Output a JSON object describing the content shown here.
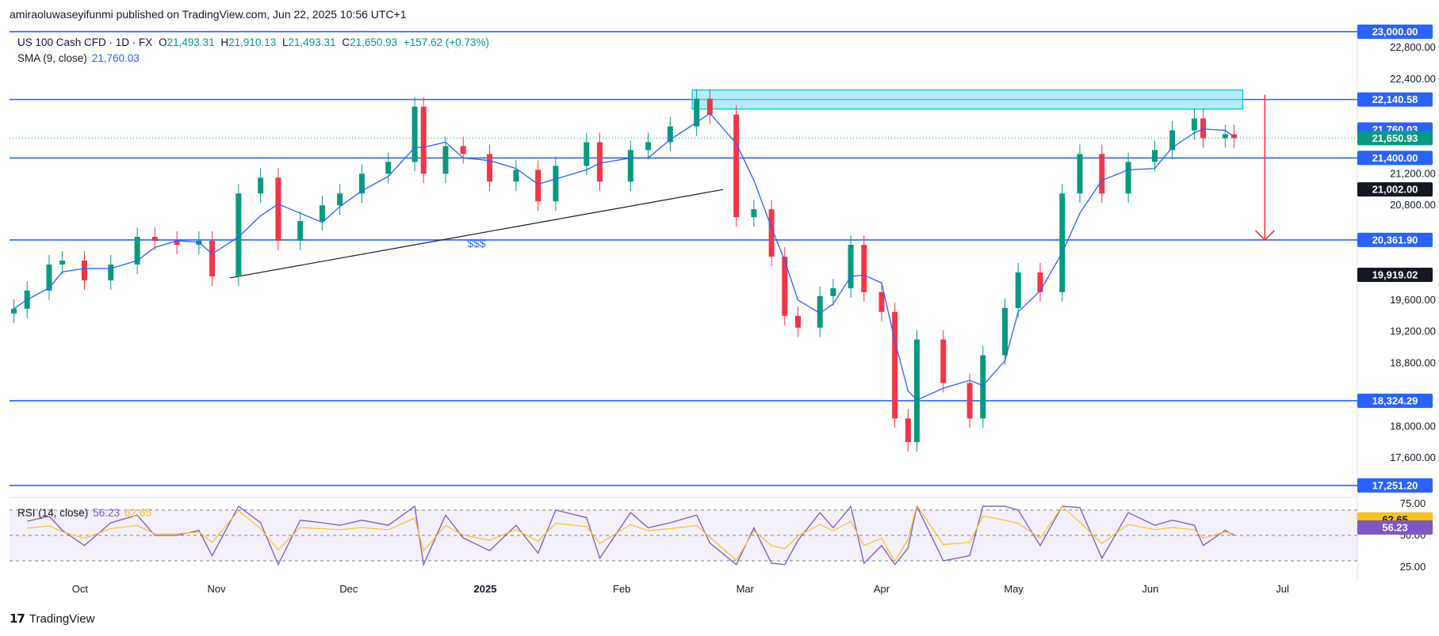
{
  "attribution": "amiraoluwaseyifunmi published on TradingView.com, Jun 22, 2025 10:56 UTC+1",
  "legend": {
    "symbol": "US 100 Cash CFD · 1D · FX",
    "open_label": "O",
    "open": "21,493.31",
    "high_label": "H",
    "high": "21,910.13",
    "low_label": "L",
    "low": "21,493.31",
    "close_label": "C",
    "close": "21,650.93",
    "change": "+157.62 (+0.73%)",
    "sma_label": "SMA (9, close)",
    "sma_value": "21,760.03"
  },
  "rsi_legend": {
    "label": "RSI (14, close)",
    "value": "56.23",
    "ma_value": "62.65"
  },
  "footer_logo": "TradingView",
  "colors": {
    "up": "#089981",
    "down": "#f23645",
    "level": "#2962ff",
    "sma": "#2962ff",
    "rsi": "#7e57c2",
    "rsi_ma": "#f7c21a",
    "zone": "#7fe1f0",
    "arrow": "#f23645"
  },
  "price_axis": {
    "ticks": [
      "22,800.00",
      "22,400.00",
      "21,200.00",
      "20,800.00",
      "19,600.00",
      "19,200.00",
      "18,800.00",
      "18,000.00",
      "17,600.00"
    ]
  },
  "price_badges": [
    {
      "text": "23,000.00",
      "style": "level"
    },
    {
      "text": "22,140.58",
      "style": "level"
    },
    {
      "text": "21,760.03",
      "style": "sma"
    },
    {
      "text": "21,650.93",
      "style": "last"
    },
    {
      "text": "21,400.00",
      "style": "level"
    },
    {
      "text": "21,002.00",
      "style": "dark"
    },
    {
      "text": "20,361.90",
      "style": "level"
    },
    {
      "text": "19,919.02",
      "style": "dark"
    },
    {
      "text": "18,324.29",
      "style": "level"
    },
    {
      "text": "17,251.20",
      "style": "level"
    }
  ],
  "rsi_axis": {
    "ticks": [
      "75.00",
      "50.00",
      "25.00"
    ],
    "badges": [
      "62.65",
      "56.23"
    ]
  },
  "time_axis": [
    "Oct",
    "Nov",
    "Dec",
    "2025",
    "Feb",
    "Mar",
    "Apr",
    "May",
    "Jun",
    "Jul"
  ],
  "annotation": "$$$",
  "chart_data": {
    "type": "candlestick",
    "title": "US 100 Cash CFD · 1D · FX",
    "x_range": [
      "2024-09-15",
      "2025-07-18"
    ],
    "y_range": [
      17100,
      23100
    ],
    "horizontal_levels": [
      23000,
      22140.58,
      21400,
      20361.9,
      18324.29,
      17251.2
    ],
    "supply_zone": {
      "from": "2025-02-17",
      "to": "2025-06-22",
      "price_low": 22020,
      "price_high": 22260
    },
    "trendline": {
      "from": [
        "2024-11-04",
        19880
      ],
      "to": [
        "2025-02-24",
        21000
      ]
    },
    "projection_arrow": {
      "date": "2025-06-27",
      "from": 22200,
      "to": 20361.9
    },
    "ohlc_daily_close": [
      [
        "2024-09-16",
        19490
      ],
      [
        "2024-09-19",
        19720
      ],
      [
        "2024-09-24",
        20050
      ],
      [
        "2024-09-27",
        20100
      ],
      [
        "2024-10-02",
        19850
      ],
      [
        "2024-10-08",
        20050
      ],
      [
        "2024-10-14",
        20400
      ],
      [
        "2024-10-18",
        20350
      ],
      [
        "2024-10-23",
        20300
      ],
      [
        "2024-10-28",
        20350
      ],
      [
        "2024-10-31",
        19900
      ],
      [
        "2024-11-06",
        20950
      ],
      [
        "2024-11-11",
        21150
      ],
      [
        "2024-11-15",
        20350
      ],
      [
        "2024-11-20",
        20600
      ],
      [
        "2024-11-25",
        20800
      ],
      [
        "2024-11-29",
        20950
      ],
      [
        "2024-12-04",
        21200
      ],
      [
        "2024-12-10",
        21350
      ],
      [
        "2024-12-16",
        22050
      ],
      [
        "2024-12-18",
        21200
      ],
      [
        "2024-12-23",
        21550
      ],
      [
        "2024-12-27",
        21450
      ],
      [
        "2025-01-02",
        21100
      ],
      [
        "2025-01-08",
        21250
      ],
      [
        "2025-01-13",
        20850
      ],
      [
        "2025-01-17",
        21300
      ],
      [
        "2025-01-24",
        21600
      ],
      [
        "2025-01-27",
        21100
      ],
      [
        "2025-02-03",
        21500
      ],
      [
        "2025-02-07",
        21600
      ],
      [
        "2025-02-12",
        21800
      ],
      [
        "2025-02-18",
        22150
      ],
      [
        "2025-02-21",
        21950
      ],
      [
        "2025-02-27",
        20650
      ],
      [
        "2025-03-03",
        20750
      ],
      [
        "2025-03-07",
        20150
      ],
      [
        "2025-03-10",
        19400
      ],
      [
        "2025-03-13",
        19250
      ],
      [
        "2025-03-18",
        19650
      ],
      [
        "2025-03-21",
        19750
      ],
      [
        "2025-03-25",
        20300
      ],
      [
        "2025-03-28",
        19700
      ],
      [
        "2025-04-01",
        19450
      ],
      [
        "2025-04-04",
        18100
      ],
      [
        "2025-04-07",
        17800
      ],
      [
        "2025-04-09",
        19100
      ],
      [
        "2025-04-15",
        18550
      ],
      [
        "2025-04-21",
        18100
      ],
      [
        "2025-04-24",
        18900
      ],
      [
        "2025-04-29",
        19500
      ],
      [
        "2025-05-02",
        19950
      ],
      [
        "2025-05-07",
        19700
      ],
      [
        "2025-05-12",
        20950
      ],
      [
        "2025-05-16",
        21450
      ],
      [
        "2025-05-21",
        20950
      ],
      [
        "2025-05-27",
        21350
      ],
      [
        "2025-06-02",
        21500
      ],
      [
        "2025-06-06",
        21750
      ],
      [
        "2025-06-11",
        21900
      ],
      [
        "2025-06-13",
        21650
      ],
      [
        "2025-06-18",
        21700
      ],
      [
        "2025-06-20",
        21650
      ]
    ],
    "sma_9_last": 21760.03,
    "rsi": {
      "period": 14,
      "last": 56.23,
      "ma_last": 62.65,
      "range": [
        25,
        75
      ],
      "bands": [
        70,
        50,
        30
      ]
    }
  }
}
